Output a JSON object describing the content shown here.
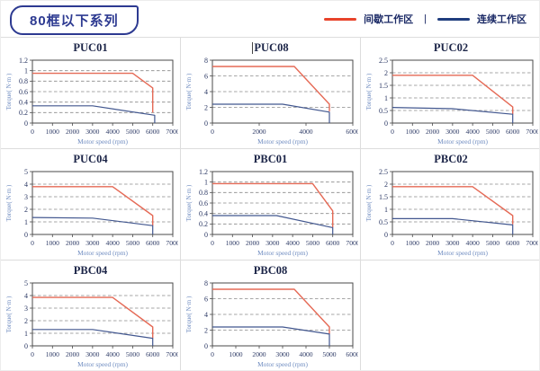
{
  "header": {
    "badge": "80框以下系列",
    "legend": {
      "intermittent_label": "间歇工作区",
      "separator": "|",
      "continuous_label": "连续工作区"
    }
  },
  "colors": {
    "legend_red": "#e8432a",
    "legend_blue": "#1f3d7e",
    "line_red": "#e56a56",
    "line_blue": "#42578f",
    "grid": "#8a8a8a",
    "plot_border": "#4a4a4a",
    "tick_text": "#2a3763",
    "axis_label": "#6f8cc0",
    "title_text": "#1b2447",
    "cell_border": "#dddddd"
  },
  "chart_data": [
    {
      "type": "line",
      "title": "PUC01",
      "xlabel": "Motor speed (rpm)",
      "ylabel": "Torque( N·m )",
      "xlim": [
        0,
        7000
      ],
      "xtick_step": 1000,
      "ylim": [
        0,
        1.2
      ],
      "yticks": [
        0,
        0.2,
        0.4,
        0.6,
        0.8,
        1,
        1.2
      ],
      "series": [
        {
          "name": "间歇工作区",
          "color_key": "line_red",
          "points": [
            [
              0,
              0.95
            ],
            [
              5000,
              0.95
            ],
            [
              6000,
              0.67
            ],
            [
              6000,
              0.2
            ]
          ]
        },
        {
          "name": "连续工作区",
          "color_key": "line_blue",
          "points": [
            [
              0,
              0.33
            ],
            [
              3000,
              0.33
            ],
            [
              6100,
              0.15
            ],
            [
              6100,
              0
            ]
          ]
        }
      ]
    },
    {
      "type": "line",
      "title": "PUC08",
      "text_cursor": true,
      "xlabel": "Motor speed (rpm)",
      "ylabel": "Torque( N·m )",
      "xlim": [
        0,
        6000
      ],
      "xtick_step": 2000,
      "ylim": [
        0,
        8
      ],
      "yticks": [
        0,
        2,
        4,
        6,
        8
      ],
      "series": [
        {
          "name": "间歇工作区",
          "color_key": "line_red",
          "points": [
            [
              0,
              7.2
            ],
            [
              3500,
              7.2
            ],
            [
              5000,
              2.4
            ],
            [
              5000,
              1.5
            ]
          ]
        },
        {
          "name": "连续工作区",
          "color_key": "line_blue",
          "points": [
            [
              0,
              2.4
            ],
            [
              3000,
              2.4
            ],
            [
              5000,
              1.4
            ],
            [
              5000,
              0
            ]
          ]
        }
      ]
    },
    {
      "type": "line",
      "title": "PUC02",
      "xlabel": "Motor speed (rpm)",
      "ylabel": "Torque( N·m )",
      "xlim": [
        0,
        7000
      ],
      "xtick_step": 1000,
      "ylim": [
        0,
        2.5
      ],
      "yticks": [
        0,
        0.5,
        1,
        1.5,
        2,
        2.5
      ],
      "series": [
        {
          "name": "间歇工作区",
          "color_key": "line_red",
          "points": [
            [
              0,
              1.9
            ],
            [
              4000,
              1.9
            ],
            [
              6000,
              0.64
            ],
            [
              6000,
              0.35
            ]
          ]
        },
        {
          "name": "连续工作区",
          "color_key": "line_blue",
          "points": [
            [
              0,
              0.62
            ],
            [
              3000,
              0.57
            ],
            [
              6000,
              0.35
            ],
            [
              6000,
              0
            ]
          ]
        }
      ]
    },
    {
      "type": "line",
      "title": "PUC04",
      "xlabel": "Motor speed (rpm)",
      "ylabel": "Torque( N·m )",
      "xlim": [
        0,
        7000
      ],
      "xtick_step": 1000,
      "ylim": [
        0,
        5
      ],
      "yticks": [
        0,
        1,
        2,
        3,
        4,
        5
      ],
      "series": [
        {
          "name": "间歇工作区",
          "color_key": "line_red",
          "points": [
            [
              0,
              3.8
            ],
            [
              4000,
              3.8
            ],
            [
              6000,
              1.5
            ],
            [
              6000,
              0.7
            ]
          ]
        },
        {
          "name": "连续工作区",
          "color_key": "line_blue",
          "points": [
            [
              0,
              1.35
            ],
            [
              3000,
              1.3
            ],
            [
              6000,
              0.7
            ],
            [
              6000,
              0
            ]
          ]
        }
      ]
    },
    {
      "type": "line",
      "title": "PBC01",
      "xlabel": "Motor speed (rpm)",
      "ylabel": "Torque( N·m )",
      "xlim": [
        0,
        7000
      ],
      "xtick_step": 1000,
      "ylim": [
        0,
        1.2
      ],
      "yticks": [
        0,
        0.2,
        0.4,
        0.6,
        0.8,
        1,
        1.2
      ],
      "series": [
        {
          "name": "间歇工作区",
          "color_key": "line_red",
          "points": [
            [
              0,
              0.97
            ],
            [
              5000,
              0.97
            ],
            [
              6000,
              0.45
            ],
            [
              6000,
              0.13
            ]
          ]
        },
        {
          "name": "连续工作区",
          "color_key": "line_blue",
          "points": [
            [
              0,
              0.36
            ],
            [
              3200,
              0.36
            ],
            [
              6000,
              0.13
            ],
            [
              6000,
              0
            ]
          ]
        }
      ]
    },
    {
      "type": "line",
      "title": "PBC02",
      "xlabel": "Motor speed (rpm)",
      "ylabel": "Torque( N·m )",
      "xlim": [
        0,
        7000
      ],
      "xtick_step": 1000,
      "ylim": [
        0,
        2.5
      ],
      "yticks": [
        0,
        0.5,
        1,
        1.5,
        2,
        2.5
      ],
      "series": [
        {
          "name": "间歇工作区",
          "color_key": "line_red",
          "points": [
            [
              0,
              1.9
            ],
            [
              4000,
              1.9
            ],
            [
              6000,
              0.75
            ],
            [
              6000,
              0.4
            ]
          ]
        },
        {
          "name": "连续工作区",
          "color_key": "line_blue",
          "points": [
            [
              0,
              0.63
            ],
            [
              3000,
              0.63
            ],
            [
              6000,
              0.38
            ],
            [
              6000,
              0
            ]
          ]
        }
      ]
    },
    {
      "type": "line",
      "title": "PBC04",
      "xlabel": "Motor speed (rpm)",
      "ylabel": "Torque( N·m )",
      "xlim": [
        0,
        7000
      ],
      "xtick_step": 1000,
      "ylim": [
        0,
        5
      ],
      "yticks": [
        0,
        1,
        2,
        3,
        4,
        5
      ],
      "series": [
        {
          "name": "间歇工作区",
          "color_key": "line_red",
          "points": [
            [
              0,
              3.85
            ],
            [
              4000,
              3.85
            ],
            [
              6000,
              1.5
            ],
            [
              6000,
              0.6
            ]
          ]
        },
        {
          "name": "连续工作区",
          "color_key": "line_blue",
          "points": [
            [
              0,
              1.3
            ],
            [
              3000,
              1.3
            ],
            [
              6000,
              0.6
            ],
            [
              6000,
              0
            ]
          ]
        }
      ]
    },
    {
      "type": "line",
      "title": "PBC08",
      "xlabel": "Motor speed (rpm)",
      "ylabel": "Torque( N·m )",
      "xlim": [
        0,
        6000
      ],
      "xtick_step": 1000,
      "ylim": [
        0,
        8
      ],
      "yticks": [
        0,
        2,
        4,
        6,
        8
      ],
      "series": [
        {
          "name": "间歇工作区",
          "color_key": "line_red",
          "points": [
            [
              0,
              7.2
            ],
            [
              3500,
              7.2
            ],
            [
              5000,
              2.4
            ],
            [
              5000,
              1.5
            ]
          ]
        },
        {
          "name": "连续工作区",
          "color_key": "line_blue",
          "points": [
            [
              0,
              2.4
            ],
            [
              3000,
              2.4
            ],
            [
              5000,
              1.5
            ],
            [
              5000,
              0
            ]
          ]
        }
      ]
    }
  ]
}
